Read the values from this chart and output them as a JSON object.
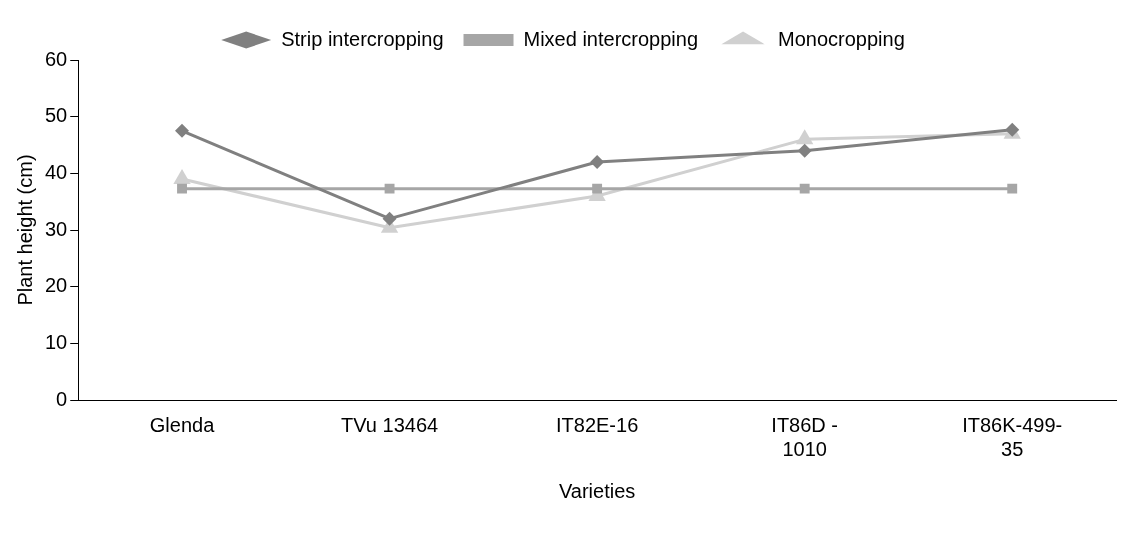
{
  "chart_data": {
    "type": "line",
    "xlabel": "Varieties",
    "ylabel": "Plant height (cm)",
    "categories": [
      "Glenda",
      "TVu 13464",
      "IT82E-16",
      "IT86D - 1010",
      "IT86K-499-35"
    ],
    "series": [
      {
        "name": "Strip intercropping",
        "color": "#808080",
        "marker": "diamond",
        "values": [
          47.5,
          32,
          42,
          44,
          47.7
        ]
      },
      {
        "name": "Mixed intercropping",
        "color": "#a6a6a6",
        "marker": "square",
        "values": [
          37.3,
          37.3,
          37.3,
          37.3,
          37.3
        ]
      },
      {
        "name": "Monocropping",
        "color": "#d0d0d0",
        "marker": "triangle",
        "values": [
          39,
          30.4,
          36,
          46,
          47
        ]
      }
    ],
    "ylim": [
      0,
      60
    ],
    "yticks": [
      0,
      10,
      20,
      30,
      40,
      50,
      60
    ],
    "grid": false,
    "legend": "top"
  }
}
